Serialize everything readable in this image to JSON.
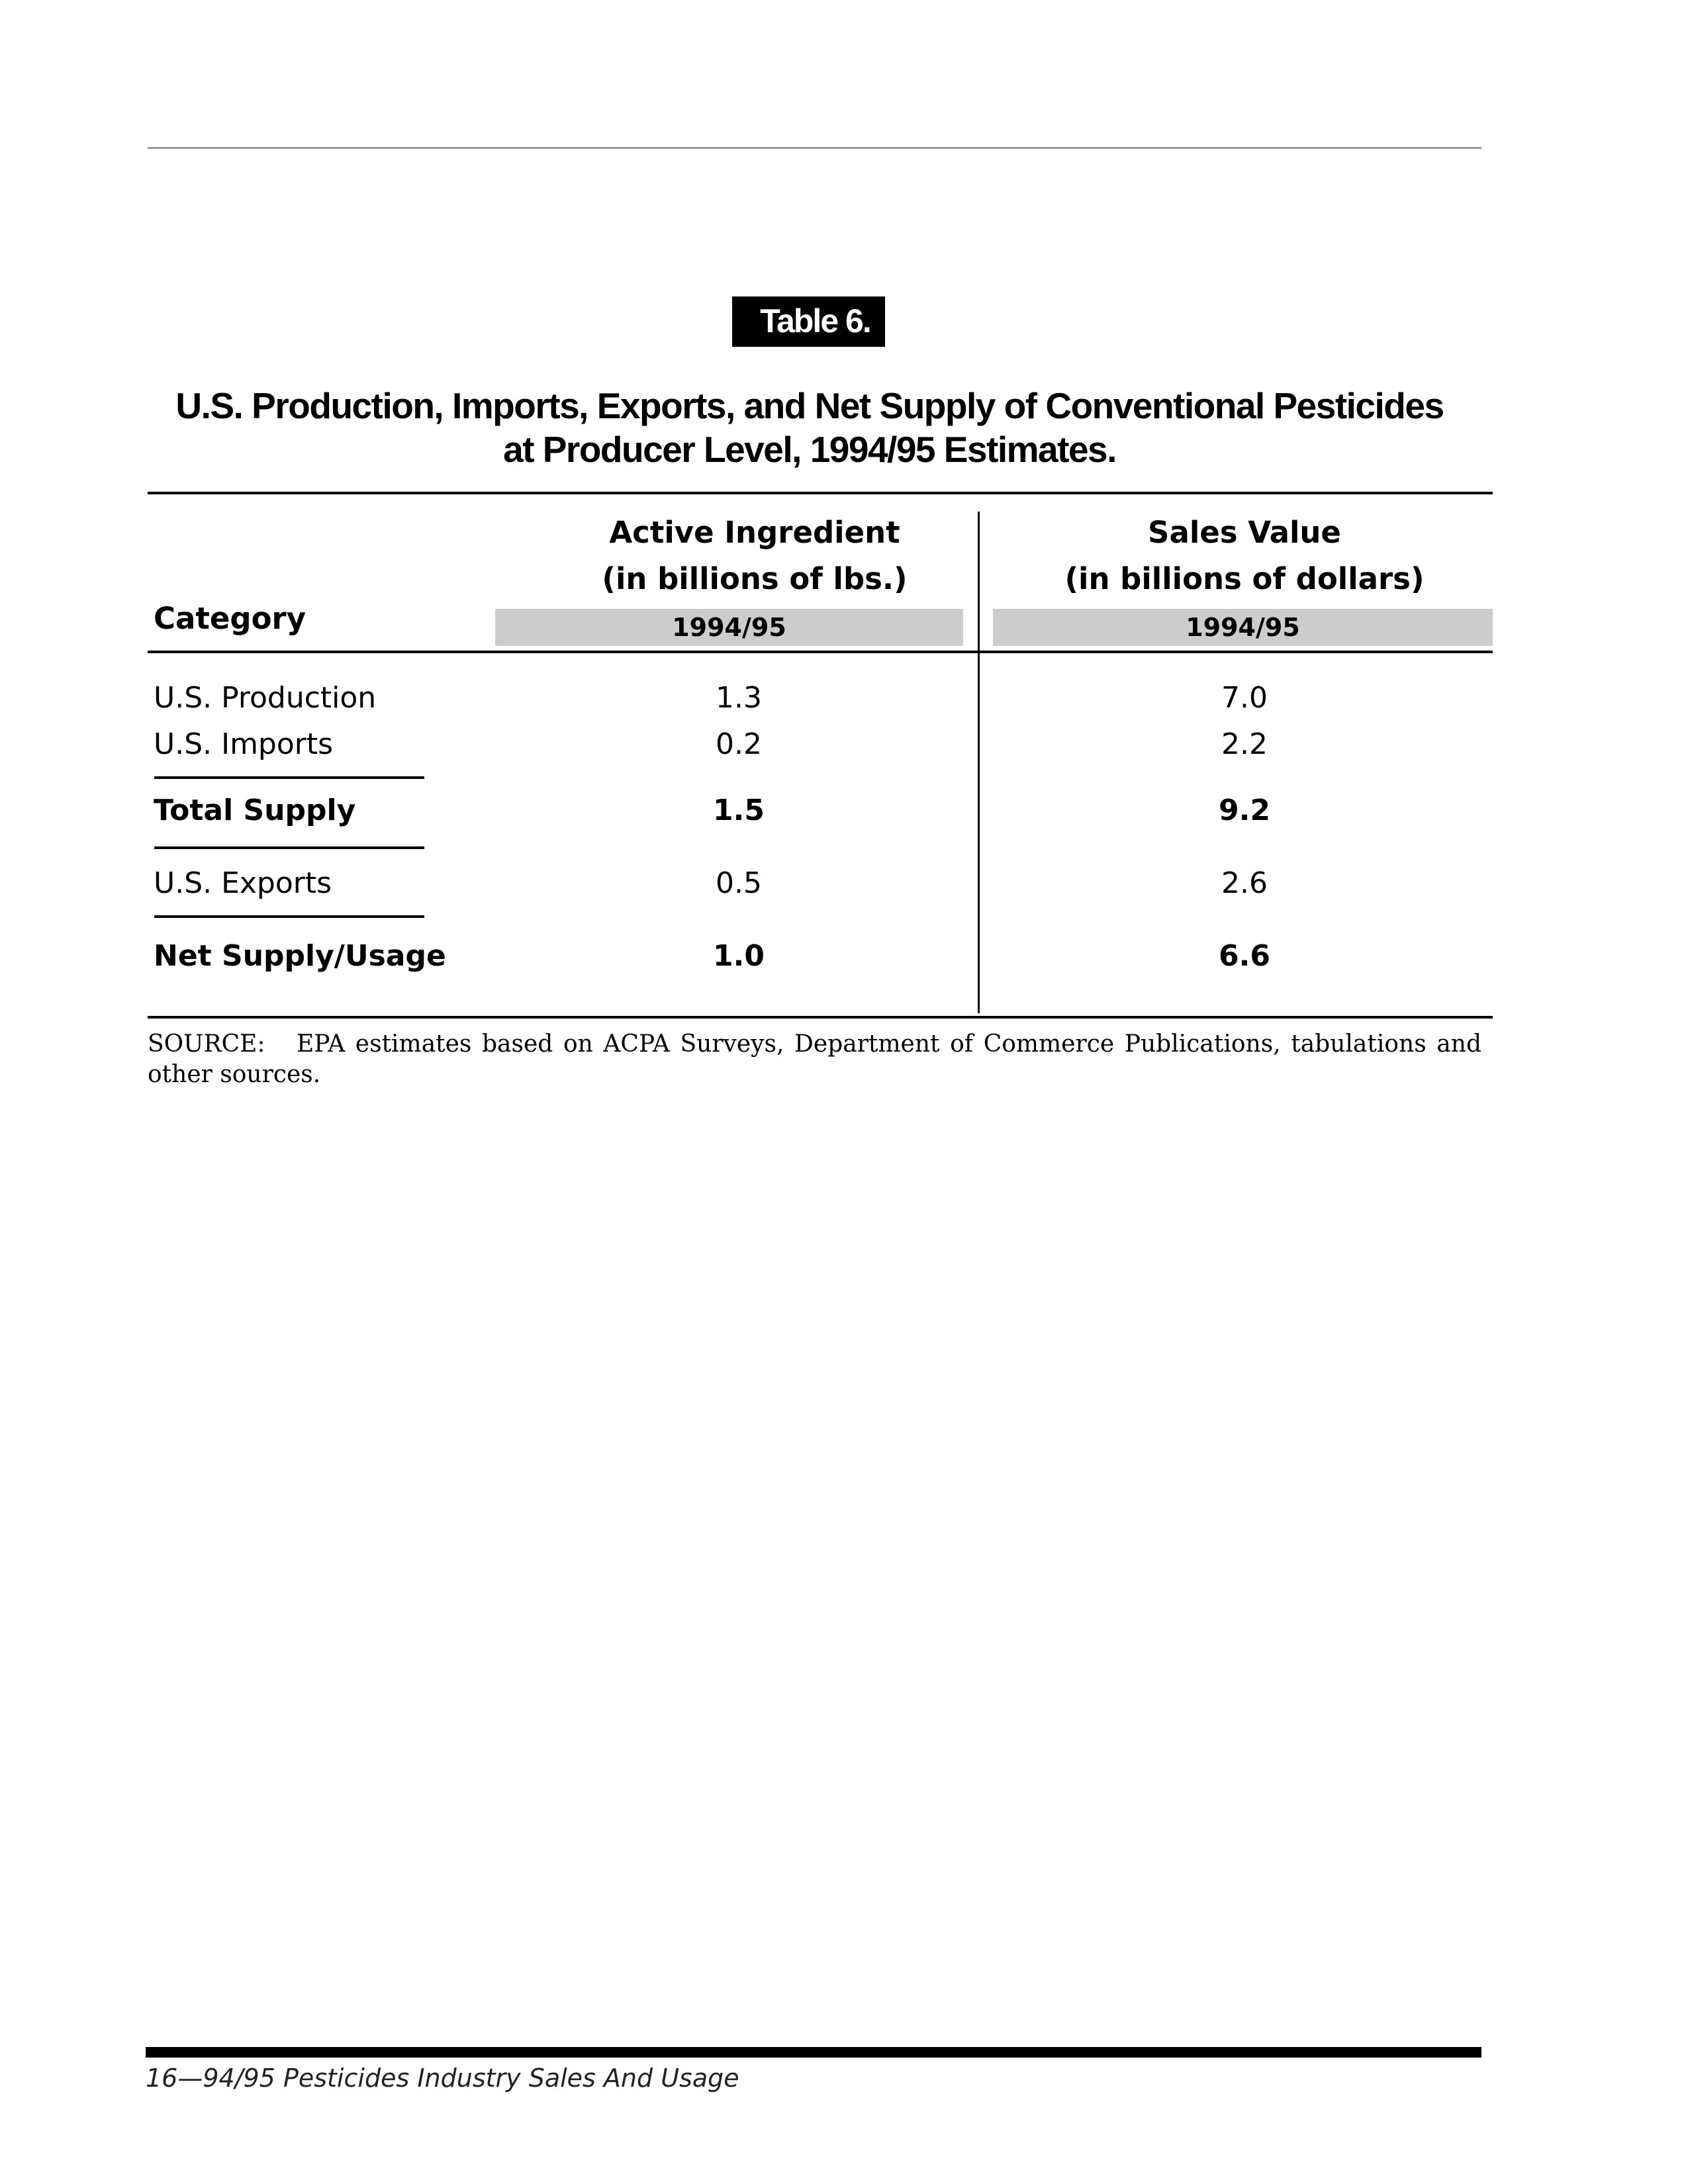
{
  "table_label": "Table 6.",
  "title": {
    "line1": "U.S. Production, Imports, Exports, and Net Supply of Conventional Pesticides",
    "line2": "at Producer Level, 1994/95 Estimates."
  },
  "columns": {
    "category": "Category",
    "active_ingredient": {
      "line1": "Active Ingredient",
      "line2": "(in billions of lbs.)",
      "year": "1994/95"
    },
    "sales_value": {
      "line1": "Sales Value",
      "line2": "(in billions of dollars)",
      "year": "1994/95"
    }
  },
  "rows": [
    {
      "category": "U.S. Production",
      "active": "1.3",
      "sales": "7.0"
    },
    {
      "category": "U.S. Imports",
      "active": "0.2",
      "sales": "2.2"
    },
    {
      "category": "Total Supply",
      "active": "1.5",
      "sales": "9.2"
    },
    {
      "category": "U.S. Exports",
      "active": "0.5",
      "sales": "2.6"
    },
    {
      "category": "Net Supply/Usage",
      "active": "1.0",
      "sales": "6.6"
    }
  ],
  "source": {
    "label": "SOURCE:",
    "text": "EPA estimates based on ACPA Surveys, Department of Commerce Publications, tabulations and other sources."
  },
  "footer": "16—94/95 Pesticides Industry Sales And Usage"
}
